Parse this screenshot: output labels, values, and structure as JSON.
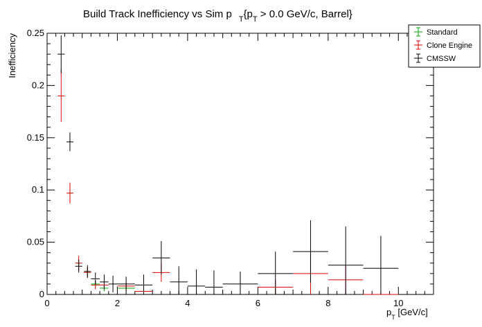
{
  "chart_data": {
    "type": "scatter",
    "title_main": "Build Track Inefficiency vs Sim p",
    "title_sub": "T",
    "title_rest_open": "{p",
    "title_rest_sub": "T",
    "title_rest_close": " > 0.0 GeV/c, Barrel}",
    "xlabel_main": "p",
    "xlabel_sub": "T",
    "xlabel_rest": " [GeV/c]",
    "ylabel": "Inefficiency",
    "xlim": [
      0,
      11
    ],
    "ylim": [
      0,
      0.25
    ],
    "x_ticks": [
      0,
      2,
      4,
      6,
      8,
      10
    ],
    "x_tick_labels": [
      "0",
      "2",
      "4",
      "6",
      "8",
      "10"
    ],
    "y_ticks": [
      0,
      0.05,
      0.1,
      0.15,
      0.2,
      0.25
    ],
    "y_tick_labels": [
      "0",
      "0.05",
      "0.1",
      "0.15",
      "0.2",
      "0.25"
    ],
    "legend_position": "top-right",
    "series": [
      {
        "name": "Standard",
        "color": "#00aa00",
        "points": [
          [
            0.65,
            0.097,
            0.05,
            0.006
          ],
          [
            0.9,
            0.03,
            0.05,
            0.004
          ],
          [
            1.15,
            0.022,
            0.05,
            0.003
          ],
          [
            1.375,
            0.01,
            0.125,
            0.003
          ],
          [
            1.625,
            0.006,
            0.125,
            0.003
          ],
          [
            2.25,
            0.006,
            0.25,
            0.003
          ]
        ]
      },
      {
        "name": "Clone Engine",
        "color": "#dd0000",
        "points": [
          [
            0.4,
            0.19,
            0.1,
            0.025
          ],
          [
            0.65,
            0.097,
            0.1,
            0.01
          ],
          [
            0.9,
            0.03,
            0.1,
            0.007
          ],
          [
            1.15,
            0.021,
            0.1,
            0.005
          ],
          [
            1.375,
            0.009,
            0.125,
            0.004
          ],
          [
            1.625,
            0.009,
            0.125,
            0.004
          ],
          [
            2.25,
            0.008,
            0.25,
            0.004
          ],
          [
            2.75,
            0.003,
            0.25,
            0.003
          ],
          [
            3.25,
            0.021,
            0.25,
            0.009
          ],
          [
            6.5,
            0.007,
            0.5,
            0.007
          ],
          [
            7.5,
            0.02,
            0.5,
            0.02
          ],
          [
            8.5,
            0.014,
            0.5,
            0.014
          ],
          [
            9.5,
            0.0,
            0.5,
            0.0
          ]
        ]
      },
      {
        "name": "CMSSW",
        "color": "#000000",
        "points": [
          [
            0.4,
            0.23,
            0.1,
            0.018
          ],
          [
            0.65,
            0.146,
            0.1,
            0.009
          ],
          [
            0.9,
            0.027,
            0.1,
            0.006
          ],
          [
            1.15,
            0.022,
            0.1,
            0.006
          ],
          [
            1.375,
            0.015,
            0.125,
            0.006
          ],
          [
            1.625,
            0.012,
            0.125,
            0.007
          ],
          [
            1.875,
            0.01,
            0.125,
            0.008
          ],
          [
            2.25,
            0.01,
            0.25,
            0.007
          ],
          [
            2.75,
            0.009,
            0.25,
            0.01
          ],
          [
            3.25,
            0.035,
            0.25,
            0.016
          ],
          [
            3.75,
            0.012,
            0.25,
            0.015
          ],
          [
            4.25,
            0.008,
            0.25,
            0.016
          ],
          [
            4.75,
            0.007,
            0.25,
            0.016
          ],
          [
            5.5,
            0.01,
            0.5,
            0.012
          ],
          [
            6.5,
            0.02,
            0.5,
            0.021
          ],
          [
            7.5,
            0.041,
            0.5,
            0.03
          ],
          [
            8.5,
            0.028,
            0.5,
            0.037
          ],
          [
            9.5,
            0.025,
            0.5,
            0.031
          ]
        ]
      }
    ]
  }
}
